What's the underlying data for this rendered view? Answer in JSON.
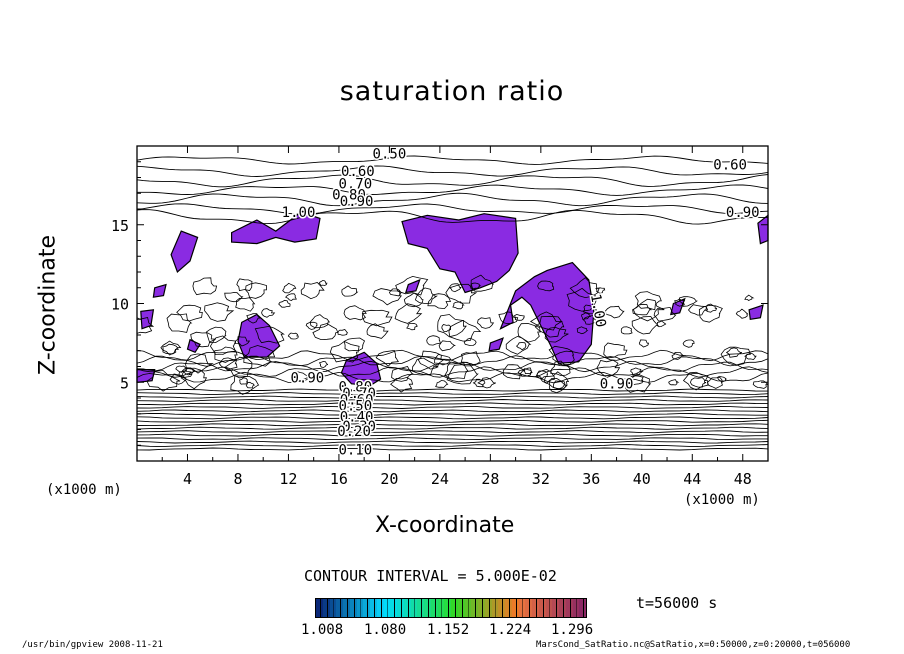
{
  "chart_data": {
    "type": "heatmap",
    "title": "saturation ratio",
    "xlabel": "X-coordinate",
    "ylabel": "Z-coordinate",
    "x_unit_label": "(x1000 m)",
    "xlim": [
      0,
      50
    ],
    "ylim": [
      0,
      20
    ],
    "x_ticks": [
      "4",
      "8",
      "12",
      "16",
      "20",
      "24",
      "28",
      "32",
      "36",
      "40",
      "44",
      "48"
    ],
    "y_ticks": [
      "5",
      "10",
      "15"
    ],
    "contour_labels": [
      "0.50",
      "0.60",
      "0.70",
      "0.80",
      "0.90",
      "1.00",
      "0.60",
      "0.90",
      "1.00",
      "0.90",
      "0.80",
      "0.70",
      "0.60",
      "0.50",
      "0.40",
      "0.30",
      "0.20",
      "0.10",
      "0.90"
    ],
    "contour_interval": "CONTOUR INTERVAL = 5.000E-02",
    "fill_color": "#8a2be2",
    "colorbar_ticks": [
      "1.008",
      "1.080",
      "1.152",
      "1.224",
      "1.296"
    ],
    "time": "t=56000  s",
    "footer_left": "/usr/bin/gpview   2008-11-21",
    "footer_right": "MarsCond_SatRatio.nc@SatRatio,x=0:50000,z=0:20000,t=056000"
  }
}
